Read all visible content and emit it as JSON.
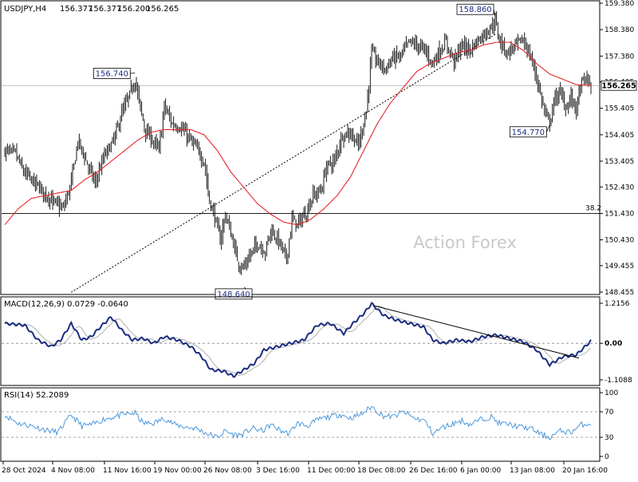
{
  "header": {
    "symbol": "USDJPY,H4",
    "open": "156.377",
    "high": "156.377",
    "low": "156.200",
    "close": "156.265"
  },
  "watermark": "Action Forex",
  "colors": {
    "candle": "#000000",
    "sma": "#e8242b",
    "trendline": "#000000",
    "macd_line": "#1b2d80",
    "macd_signal": "#b0b0b0",
    "rsi_line": "#3b8fd9",
    "callout_text": "#1b2d80",
    "grid_zero": "#888888"
  },
  "chart_data": [
    {
      "type": "candlestick",
      "panel": "price",
      "ylim": [
        148.455,
        159.38
      ],
      "yticks": [
        "159.380",
        "158.380",
        "157.380",
        "156.405",
        "155.405",
        "154.405",
        "153.405",
        "152.430",
        "151.430",
        "150.430",
        "149.455",
        "148.455"
      ],
      "current_price": 156.265,
      "current_price_label": "156.265",
      "price_line": 156.265,
      "fib_level": {
        "value": 151.43,
        "label": "38.2"
      },
      "xlabels": [
        "28 Oct 2024",
        "4 Nov 08:00",
        "11 Nov 16:00",
        "19 Nov 00:00",
        "26 Nov 08:00",
        "3 Dec 16:00",
        "11 Dec 00:00",
        "18 Dec 08:00",
        "26 Dec 16:00",
        "6 Jan 00:00",
        "13 Jan 08:00",
        "20 Jan 16:00"
      ],
      "callouts": [
        {
          "label": "156.740",
          "value": 156.74,
          "bar": 98
        },
        {
          "label": "148.640",
          "value": 148.64,
          "bar": 180
        },
        {
          "label": "158.860",
          "value": 158.86,
          "bar": 369
        },
        {
          "label": "154.770",
          "value": 154.77,
          "bar": 410
        }
      ],
      "trendline": {
        "from": {
          "bar": 50,
          "value": 148.45
        },
        "to": {
          "bar": 369,
          "value": 158.2
        }
      },
      "anchors": [
        [
          0,
          153.8
        ],
        [
          8,
          153.7
        ],
        [
          14,
          153.0
        ],
        [
          22,
          152.6
        ],
        [
          30,
          152.2
        ],
        [
          38,
          151.8
        ],
        [
          44,
          151.6
        ],
        [
          50,
          152.6
        ],
        [
          55,
          154.2
        ],
        [
          62,
          153.3
        ],
        [
          68,
          152.6
        ],
        [
          75,
          153.6
        ],
        [
          82,
          154.2
        ],
        [
          88,
          155.2
        ],
        [
          94,
          155.9
        ],
        [
          98,
          156.5
        ],
        [
          102,
          155.4
        ],
        [
          106,
          154.5
        ],
        [
          110,
          154.3
        ],
        [
          116,
          153.8
        ],
        [
          120,
          155.5
        ],
        [
          126,
          154.8
        ],
        [
          132,
          154.7
        ],
        [
          138,
          154.3
        ],
        [
          144,
          153.9
        ],
        [
          150,
          153.4
        ],
        [
          154,
          151.9
        ],
        [
          158,
          151.3
        ],
        [
          162,
          150.4
        ],
        [
          166,
          151.4
        ],
        [
          172,
          150.3
        ],
        [
          176,
          149.5
        ],
        [
          180,
          149.4
        ],
        [
          184,
          149.8
        ],
        [
          190,
          150.3
        ],
        [
          196,
          150.0
        ],
        [
          200,
          150.8
        ],
        [
          206,
          150.4
        ],
        [
          212,
          149.7
        ],
        [
          216,
          151.2
        ],
        [
          220,
          151.0
        ],
        [
          226,
          151.4
        ],
        [
          232,
          152.1
        ],
        [
          238,
          152.3
        ],
        [
          242,
          153.2
        ],
        [
          248,
          153.4
        ],
        [
          254,
          154.4
        ],
        [
          260,
          154.5
        ],
        [
          266,
          154.0
        ],
        [
          272,
          155.3
        ],
        [
          276,
          157.5
        ],
        [
          280,
          157.2
        ],
        [
          286,
          156.9
        ],
        [
          292,
          157.3
        ],
        [
          298,
          157.4
        ],
        [
          304,
          157.9
        ],
        [
          310,
          157.8
        ],
        [
          316,
          157.6
        ],
        [
          322,
          157.1
        ],
        [
          326,
          157.5
        ],
        [
          332,
          157.9
        ],
        [
          338,
          157.2
        ],
        [
          344,
          157.8
        ],
        [
          350,
          157.6
        ],
        [
          356,
          158.0
        ],
        [
          362,
          158.3
        ],
        [
          366,
          158.5
        ],
        [
          369,
          158.7
        ],
        [
          372,
          158.0
        ],
        [
          378,
          157.5
        ],
        [
          384,
          157.8
        ],
        [
          390,
          158.0
        ],
        [
          396,
          157.3
        ],
        [
          400,
          156.6
        ],
        [
          404,
          155.7
        ],
        [
          408,
          155.0
        ],
        [
          410,
          154.9
        ],
        [
          414,
          155.8
        ],
        [
          418,
          156.0
        ],
        [
          422,
          155.4
        ],
        [
          426,
          155.8
        ],
        [
          430,
          155.4
        ],
        [
          434,
          156.4
        ],
        [
          438,
          156.5
        ],
        [
          441,
          156.27
        ]
      ],
      "sma_anchors": [
        [
          0,
          151.0
        ],
        [
          10,
          151.6
        ],
        [
          20,
          152.0
        ],
        [
          30,
          152.1
        ],
        [
          40,
          152.2
        ],
        [
          50,
          152.3
        ],
        [
          60,
          152.7
        ],
        [
          70,
          153.0
        ],
        [
          80,
          153.4
        ],
        [
          90,
          153.8
        ],
        [
          100,
          154.2
        ],
        [
          110,
          154.5
        ],
        [
          120,
          154.6
        ],
        [
          130,
          154.6
        ],
        [
          140,
          154.6
        ],
        [
          150,
          154.4
        ],
        [
          160,
          153.8
        ],
        [
          170,
          153.0
        ],
        [
          180,
          152.4
        ],
        [
          190,
          151.8
        ],
        [
          200,
          151.4
        ],
        [
          210,
          151.1
        ],
        [
          220,
          151.0
        ],
        [
          230,
          151.2
        ],
        [
          240,
          151.6
        ],
        [
          250,
          152.1
        ],
        [
          260,
          152.8
        ],
        [
          270,
          153.8
        ],
        [
          280,
          154.8
        ],
        [
          290,
          155.6
        ],
        [
          300,
          156.2
        ],
        [
          310,
          156.8
        ],
        [
          320,
          157.1
        ],
        [
          330,
          157.3
        ],
        [
          340,
          157.5
        ],
        [
          350,
          157.6
        ],
        [
          360,
          157.8
        ],
        [
          370,
          157.9
        ],
        [
          380,
          157.9
        ],
        [
          390,
          157.6
        ],
        [
          400,
          157.1
        ],
        [
          410,
          156.7
        ],
        [
          420,
          156.5
        ],
        [
          430,
          156.3
        ],
        [
          441,
          156.27
        ]
      ]
    },
    {
      "type": "line",
      "panel": "macd",
      "title": "MACD(12,26,9) 0.0729 -0.0640",
      "ylim": [
        -1.1088,
        1.2156
      ],
      "yticks": [
        "1.2156",
        "0.00",
        "-1.1088"
      ],
      "zero_label": "0.00",
      "anchors": [
        [
          0,
          0.6
        ],
        [
          15,
          0.55
        ],
        [
          25,
          0.1
        ],
        [
          35,
          -0.1
        ],
        [
          42,
          0.1
        ],
        [
          50,
          0.6
        ],
        [
          58,
          0.1
        ],
        [
          65,
          0.2
        ],
        [
          72,
          0.5
        ],
        [
          80,
          0.8
        ],
        [
          88,
          0.4
        ],
        [
          96,
          0.1
        ],
        [
          104,
          0.15
        ],
        [
          112,
          0.0
        ],
        [
          120,
          0.2
        ],
        [
          130,
          0.1
        ],
        [
          140,
          -0.1
        ],
        [
          148,
          -0.4
        ],
        [
          155,
          -0.8
        ],
        [
          165,
          -0.85
        ],
        [
          172,
          -1.0
        ],
        [
          180,
          -0.8
        ],
        [
          188,
          -0.6
        ],
        [
          195,
          -0.2
        ],
        [
          205,
          -0.1
        ],
        [
          215,
          0.0
        ],
        [
          225,
          0.1
        ],
        [
          235,
          0.55
        ],
        [
          245,
          0.6
        ],
        [
          255,
          0.3
        ],
        [
          262,
          0.6
        ],
        [
          270,
          0.9
        ],
        [
          276,
          1.2
        ],
        [
          285,
          0.85
        ],
        [
          295,
          0.7
        ],
        [
          305,
          0.6
        ],
        [
          315,
          0.5
        ],
        [
          322,
          0.1
        ],
        [
          330,
          0.0
        ],
        [
          340,
          0.1
        ],
        [
          350,
          0.05
        ],
        [
          360,
          0.2
        ],
        [
          370,
          0.25
        ],
        [
          380,
          0.15
        ],
        [
          390,
          0.05
        ],
        [
          400,
          -0.2
        ],
        [
          410,
          -0.65
        ],
        [
          420,
          -0.4
        ],
        [
          430,
          -0.35
        ],
        [
          441,
          0.07
        ]
      ],
      "signal_lag": 3,
      "signal_smooth": 6,
      "trendline": {
        "from": {
          "bar": 277,
          "value": 1.15
        },
        "to": {
          "bar": 432,
          "value": -0.45
        }
      }
    },
    {
      "type": "line",
      "panel": "rsi",
      "title": "RSI(14) 52.2089",
      "ylim": [
        0,
        100
      ],
      "yticks": [
        "100",
        "70",
        "30",
        "0"
      ],
      "levels": [
        70,
        30
      ],
      "anchors": [
        [
          0,
          65
        ],
        [
          10,
          52
        ],
        [
          20,
          48
        ],
        [
          30,
          42
        ],
        [
          40,
          38
        ],
        [
          50,
          65
        ],
        [
          58,
          48
        ],
        [
          66,
          50
        ],
        [
          74,
          58
        ],
        [
          82,
          62
        ],
        [
          90,
          66
        ],
        [
          98,
          68
        ],
        [
          104,
          52
        ],
        [
          112,
          52
        ],
        [
          120,
          60
        ],
        [
          128,
          50
        ],
        [
          136,
          46
        ],
        [
          144,
          44
        ],
        [
          152,
          36
        ],
        [
          160,
          30
        ],
        [
          166,
          40
        ],
        [
          172,
          34
        ],
        [
          178,
          34
        ],
        [
          186,
          44
        ],
        [
          194,
          40
        ],
        [
          200,
          50
        ],
        [
          208,
          40
        ],
        [
          214,
          36
        ],
        [
          220,
          52
        ],
        [
          228,
          48
        ],
        [
          236,
          58
        ],
        [
          244,
          62
        ],
        [
          252,
          66
        ],
        [
          260,
          60
        ],
        [
          268,
          66
        ],
        [
          276,
          78
        ],
        [
          284,
          64
        ],
        [
          292,
          62
        ],
        [
          300,
          70
        ],
        [
          308,
          60
        ],
        [
          316,
          56
        ],
        [
          322,
          36
        ],
        [
          330,
          46
        ],
        [
          338,
          52
        ],
        [
          344,
          56
        ],
        [
          350,
          50
        ],
        [
          358,
          58
        ],
        [
          366,
          62
        ],
        [
          372,
          52
        ],
        [
          380,
          50
        ],
        [
          388,
          46
        ],
        [
          396,
          44
        ],
        [
          404,
          34
        ],
        [
          410,
          30
        ],
        [
          418,
          40
        ],
        [
          426,
          38
        ],
        [
          434,
          50
        ],
        [
          441,
          52
        ]
      ]
    }
  ]
}
